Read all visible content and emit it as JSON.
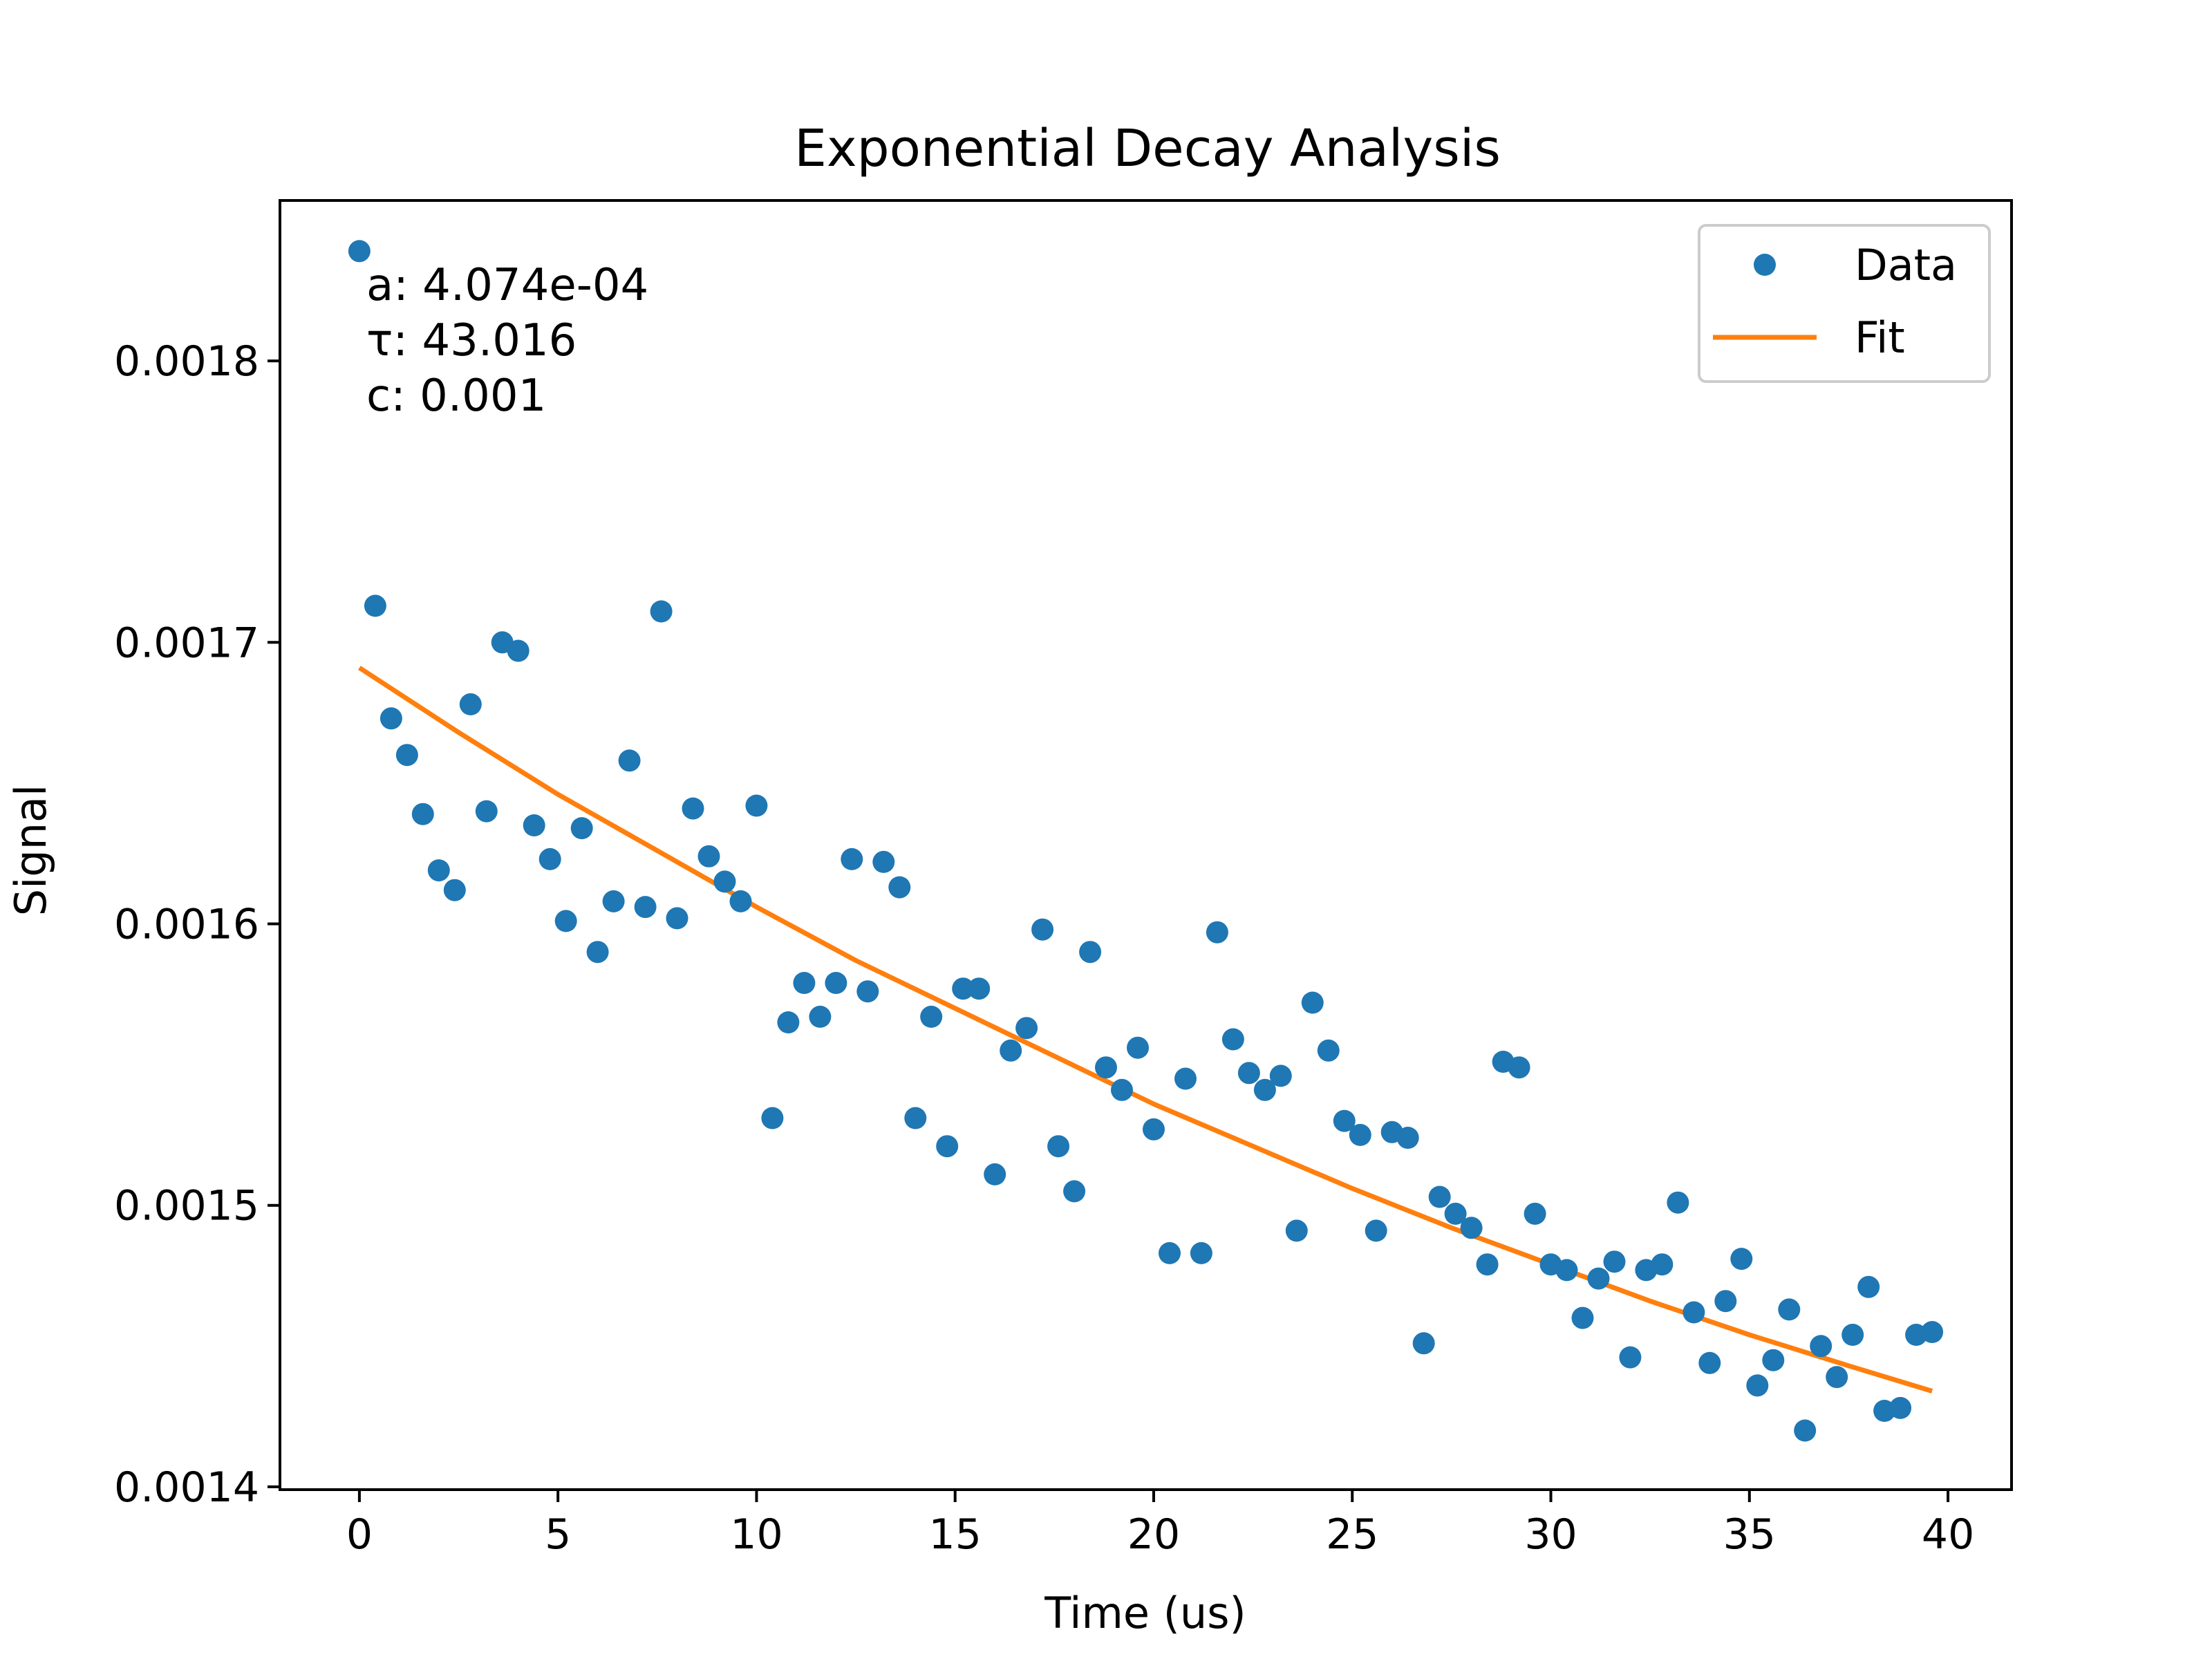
{
  "chart_data": {
    "type": "scatter",
    "title": "Exponential Decay Analysis",
    "xlabel": "Time (us)",
    "ylabel": "Signal",
    "xlim": [
      -2.0,
      41.6
    ],
    "ylim": [
      0.001399,
      0.001857
    ],
    "xticks": [
      0,
      5,
      10,
      15,
      20,
      25,
      30,
      35,
      40
    ],
    "xtick_labels": [
      "0",
      "5",
      "10",
      "15",
      "20",
      "25",
      "30",
      "35",
      "40"
    ],
    "yticks": [
      0.0014,
      0.0015,
      0.0016,
      0.0017,
      0.0018
    ],
    "ytick_labels": [
      "0.0014",
      "0.0015",
      "0.0016",
      "0.0017",
      "0.0018"
    ],
    "grid": false,
    "legend_position": "top-right",
    "annotation": {
      "position": "top-left",
      "lines": [
        "a: 4.074e-04",
        "τ: 43.016",
        "c: 0.001"
      ]
    },
    "series": [
      {
        "name": "Data",
        "kind": "scatter",
        "color": "#1f77b4",
        "x": [
          0.0,
          0.4,
          0.8,
          1.2,
          1.6,
          2.0,
          2.4,
          2.8,
          3.2,
          3.6,
          4.0,
          4.4,
          4.8,
          5.2,
          5.6,
          6.0,
          6.4,
          6.8,
          7.2,
          7.6,
          8.0,
          8.4,
          8.8,
          9.2,
          9.6,
          10.0,
          10.4,
          10.8,
          11.2,
          11.6,
          12.0,
          12.4,
          12.8,
          13.2,
          13.6,
          14.0,
          14.4,
          14.8,
          15.2,
          15.6,
          16.0,
          16.4,
          16.8,
          17.2,
          17.6,
          18.0,
          18.4,
          18.8,
          19.2,
          19.6,
          20.0,
          20.4,
          20.8,
          21.2,
          21.6,
          22.0,
          22.4,
          22.8,
          23.2,
          23.6,
          24.0,
          24.4,
          24.8,
          25.2,
          25.6,
          26.0,
          26.4,
          26.8,
          27.2,
          27.6,
          28.0,
          28.4,
          28.8,
          29.2,
          29.6,
          30.0,
          30.4,
          30.8,
          31.2,
          31.6,
          32.0,
          32.4,
          32.8,
          33.2,
          33.6,
          34.0,
          34.4,
          34.8,
          35.2,
          35.6,
          36.0,
          36.4,
          36.8,
          37.2,
          37.6,
          38.0,
          38.4,
          38.8,
          39.2,
          39.6
        ],
        "y": [
          0.001839,
          0.001713,
          0.001673,
          0.00166,
          0.001639,
          0.001619,
          0.001612,
          0.001678,
          0.00164,
          0.0017,
          0.001697,
          0.001635,
          0.001623,
          0.001601,
          0.001634,
          0.00159,
          0.001608,
          0.001658,
          0.001606,
          0.001711,
          0.001602,
          0.001641,
          0.001624,
          0.001615,
          0.001608,
          0.001642,
          0.001531,
          0.001565,
          0.001579,
          0.001567,
          0.001579,
          0.001623,
          0.001576,
          0.001622,
          0.001613,
          0.001531,
          0.001567,
          0.001521,
          0.001577,
          0.001577,
          0.001511,
          0.001555,
          0.001563,
          0.001598,
          0.001521,
          0.001505,
          0.00159,
          0.001549,
          0.001541,
          0.001556,
          0.001527,
          0.001483,
          0.001545,
          0.001483,
          0.001597,
          0.001559,
          0.001547,
          0.001541,
          0.001546,
          0.001491,
          0.001572,
          0.001555,
          0.00153,
          0.001525,
          0.001491,
          0.001526,
          0.001524,
          0.001451,
          0.001503,
          0.001497,
          0.001492,
          0.001479,
          0.001551,
          0.001549,
          0.001497,
          0.001479,
          0.001477,
          0.00146,
          0.001474,
          0.00148,
          0.001446,
          0.001477,
          0.001479,
          0.001501,
          0.001462,
          0.001444,
          0.001466,
          0.001481,
          0.001436,
          0.001445,
          0.001463,
          0.00142,
          0.00145,
          0.001439,
          0.001454,
          0.001471,
          0.001427,
          0.001428,
          0.001454,
          0.001455
        ]
      },
      {
        "name": "Fit",
        "kind": "line",
        "color": "#ff7f0e",
        "model": "a*exp(-t/tau)+c",
        "x": [
          0.0,
          2.5,
          5.0,
          7.5,
          10.0,
          12.5,
          15.0,
          17.5,
          20.0,
          22.5,
          25.0,
          27.5,
          30.0,
          32.5,
          35.0,
          37.5,
          39.6
        ],
        "y": [
          0.001691,
          0.001668,
          0.001646,
          0.001626,
          0.001606,
          0.001587,
          0.00157,
          0.001553,
          0.001536,
          0.001521,
          0.001506,
          0.001492,
          0.001479,
          0.001466,
          0.001454,
          0.001443,
          0.001434
        ]
      }
    ]
  }
}
